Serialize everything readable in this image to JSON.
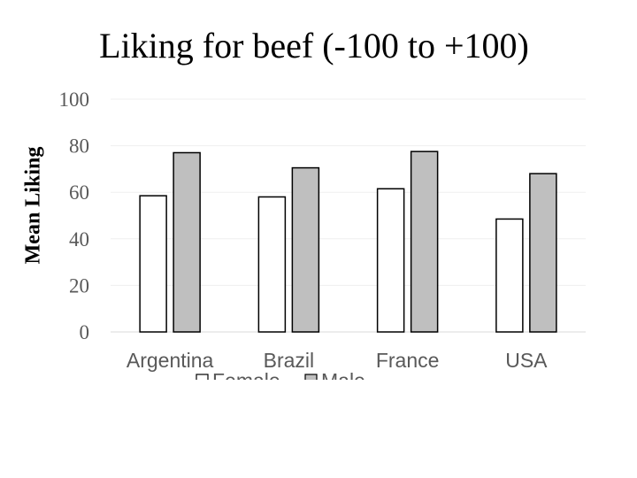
{
  "chart_data": {
    "type": "bar",
    "title": "Liking for beef (-100 to +100)",
    "xlabel": "",
    "ylabel": "Mean Liking",
    "categories": [
      "Argentina",
      "Brazil",
      "France",
      "USA"
    ],
    "series": [
      {
        "name": "Female",
        "values": [
          58.5,
          58,
          61.5,
          48.5
        ],
        "color": "#ffffff"
      },
      {
        "name": "Male",
        "values": [
          77,
          70.5,
          77.5,
          68
        ],
        "color": "#bfbfbf"
      }
    ],
    "ylim": [
      0,
      100
    ],
    "yticks": [
      "0",
      "20",
      "40",
      "60",
      "80",
      "100"
    ],
    "grid": true,
    "legend": "bottom"
  }
}
